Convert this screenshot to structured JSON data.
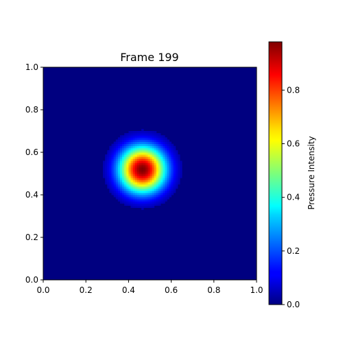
{
  "chart_data": {
    "type": "heatmap",
    "title": "Frame 199",
    "xlim": [
      0.0,
      1.0
    ],
    "ylim": [
      0.0,
      1.0
    ],
    "x_ticks": [
      "0.0",
      "0.2",
      "0.4",
      "0.6",
      "0.8",
      "1.0"
    ],
    "y_ticks": [
      "0.0",
      "0.2",
      "0.4",
      "0.6",
      "0.8",
      "1.0"
    ],
    "colormap": "jet",
    "colorbar": {
      "label": "Pressure Intensity",
      "range": [
        0.0,
        0.98
      ],
      "ticks": [
        "0.0",
        "0.2",
        "0.4",
        "0.6",
        "0.8"
      ]
    },
    "field": {
      "shape": "gaussian",
      "center": [
        0.465,
        0.52
      ],
      "peak": 0.98,
      "sigma": 0.075,
      "cutoff_radius": 0.185,
      "grid_resolution": 100
    }
  }
}
